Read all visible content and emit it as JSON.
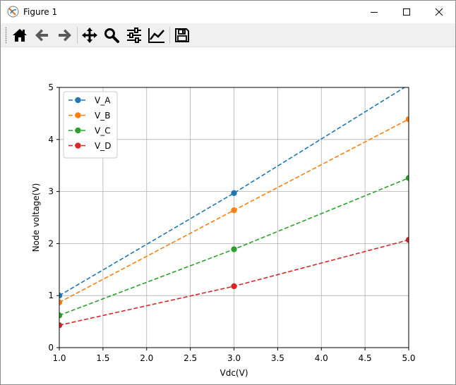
{
  "window": {
    "title": "Figure 1"
  },
  "toolbar": {
    "buttons": [
      {
        "id": "home",
        "icon": "home-icon"
      },
      {
        "id": "back",
        "icon": "arrow-left-icon"
      },
      {
        "id": "forward",
        "icon": "arrow-right-icon"
      },
      {
        "id": "pan",
        "icon": "move-icon"
      },
      {
        "id": "zoom",
        "icon": "magnifier-icon"
      },
      {
        "id": "subplots",
        "icon": "sliders-icon"
      },
      {
        "id": "customize",
        "icon": "line-chart-icon"
      },
      {
        "id": "save",
        "icon": "floppy-disk-icon"
      }
    ]
  },
  "chart_data": {
    "type": "line",
    "xlabel": "Vdc(V)",
    "ylabel": "Node voltage(V)",
    "xlim": [
      1.0,
      5.0
    ],
    "ylim": [
      0,
      5
    ],
    "x_ticks": [
      "1.0",
      "1.5",
      "2.0",
      "2.5",
      "3.0",
      "3.5",
      "4.0",
      "4.5",
      "5.0"
    ],
    "y_ticks": [
      "0",
      "1",
      "2",
      "3",
      "4",
      "5"
    ],
    "grid": true,
    "legend_position": "upper-left",
    "x": [
      1.0,
      3.0,
      5.0
    ],
    "series": [
      {
        "name": "V_A",
        "color": "#1f77b4",
        "values": [
          1.0,
          2.97,
          5.05
        ]
      },
      {
        "name": "V_B",
        "color": "#ff7f0e",
        "values": [
          0.87,
          2.64,
          4.39
        ]
      },
      {
        "name": "V_C",
        "color": "#2ca02c",
        "values": [
          0.62,
          1.89,
          3.26
        ]
      },
      {
        "name": "V_D",
        "color": "#d62728",
        "values": [
          0.43,
          1.18,
          2.07
        ]
      }
    ]
  }
}
